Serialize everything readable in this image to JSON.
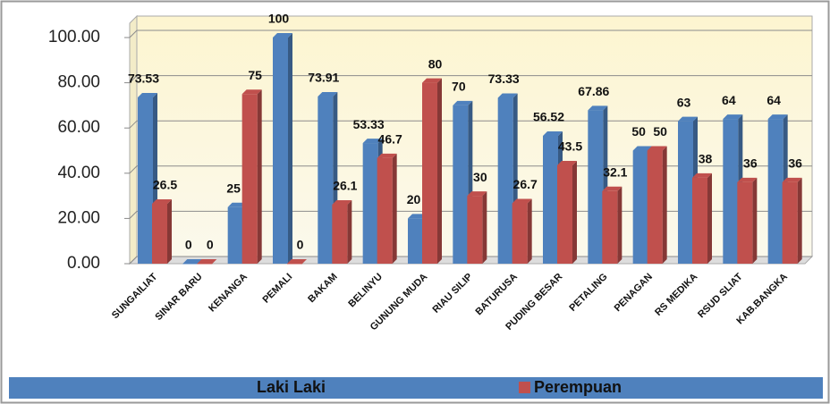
{
  "chart_data": {
    "type": "bar",
    "categories": [
      "SUNGAILIAT",
      "SINAR BARU",
      "KENANGA",
      "PEMALI",
      "BAKAM",
      "BELINYU",
      "GUNUNG MUDA",
      "RIAU SILIP",
      "BATURUSA",
      "PUDING BESAR",
      "PETALING",
      "PENAGAN",
      "RS MEDIKA",
      "RSUD SLIAT",
      "KAB.BANGKA"
    ],
    "series": [
      {
        "name": "Laki Laki",
        "color": "#4f81bd",
        "values": [
          73.53,
          0,
          25,
          100,
          73.91,
          53.33,
          20,
          70,
          73.33,
          56.52,
          67.86,
          50,
          63,
          64,
          64
        ]
      },
      {
        "name": "Perempuan",
        "color": "#c0504d",
        "values": [
          26.5,
          0,
          75,
          0,
          26.1,
          46.7,
          80,
          30,
          26.7,
          43.5,
          32.1,
          50,
          38,
          36,
          36
        ]
      }
    ],
    "ylim": [
      0,
      100
    ],
    "yticks": [
      {
        "value": 0,
        "label": "0.00"
      },
      {
        "value": 20,
        "label": "20.00"
      },
      {
        "value": 40,
        "label": "40.00"
      },
      {
        "value": 60,
        "label": "60.00"
      },
      {
        "value": 80,
        "label": "80.00"
      },
      {
        "value": 100,
        "label": "100.00"
      }
    ],
    "grid": true
  }
}
